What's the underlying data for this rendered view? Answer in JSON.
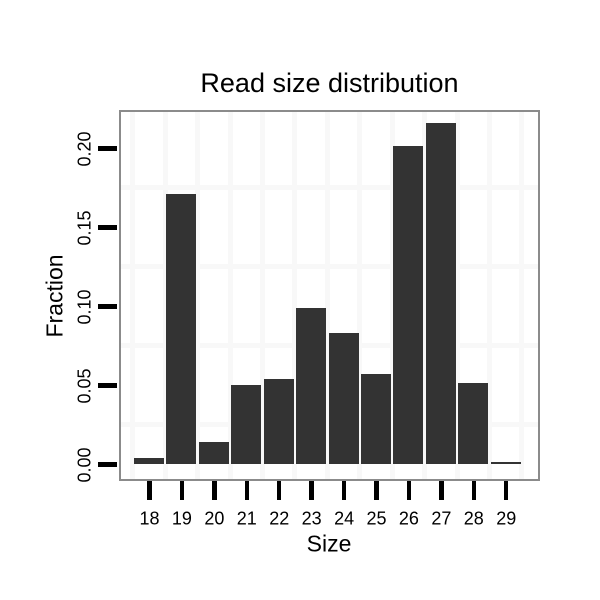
{
  "chart_data": {
    "type": "bar",
    "title": "Read size distribution",
    "xlabel": "Size",
    "ylabel": "Fraction",
    "categories": [
      "18",
      "19",
      "20",
      "21",
      "22",
      "23",
      "24",
      "25",
      "26",
      "27",
      "28",
      "29"
    ],
    "values": [
      0.004,
      0.171,
      0.014,
      0.05,
      0.054,
      0.099,
      0.083,
      0.057,
      0.201,
      0.216,
      0.051,
      0.001
    ],
    "ytick_labels": [
      "0.00",
      "0.05",
      "0.10",
      "0.15",
      "0.20"
    ],
    "ylim": [
      -0.009,
      0.226
    ],
    "bar_color": "#333333",
    "panel_border_color": "#8b8b8b",
    "gridline_color": "#f8f8f8",
    "tick_color": "#000000",
    "grid": "minor gridlines only (half-step vertical, 0.025-step horizontal)",
    "legend_position": "none"
  }
}
